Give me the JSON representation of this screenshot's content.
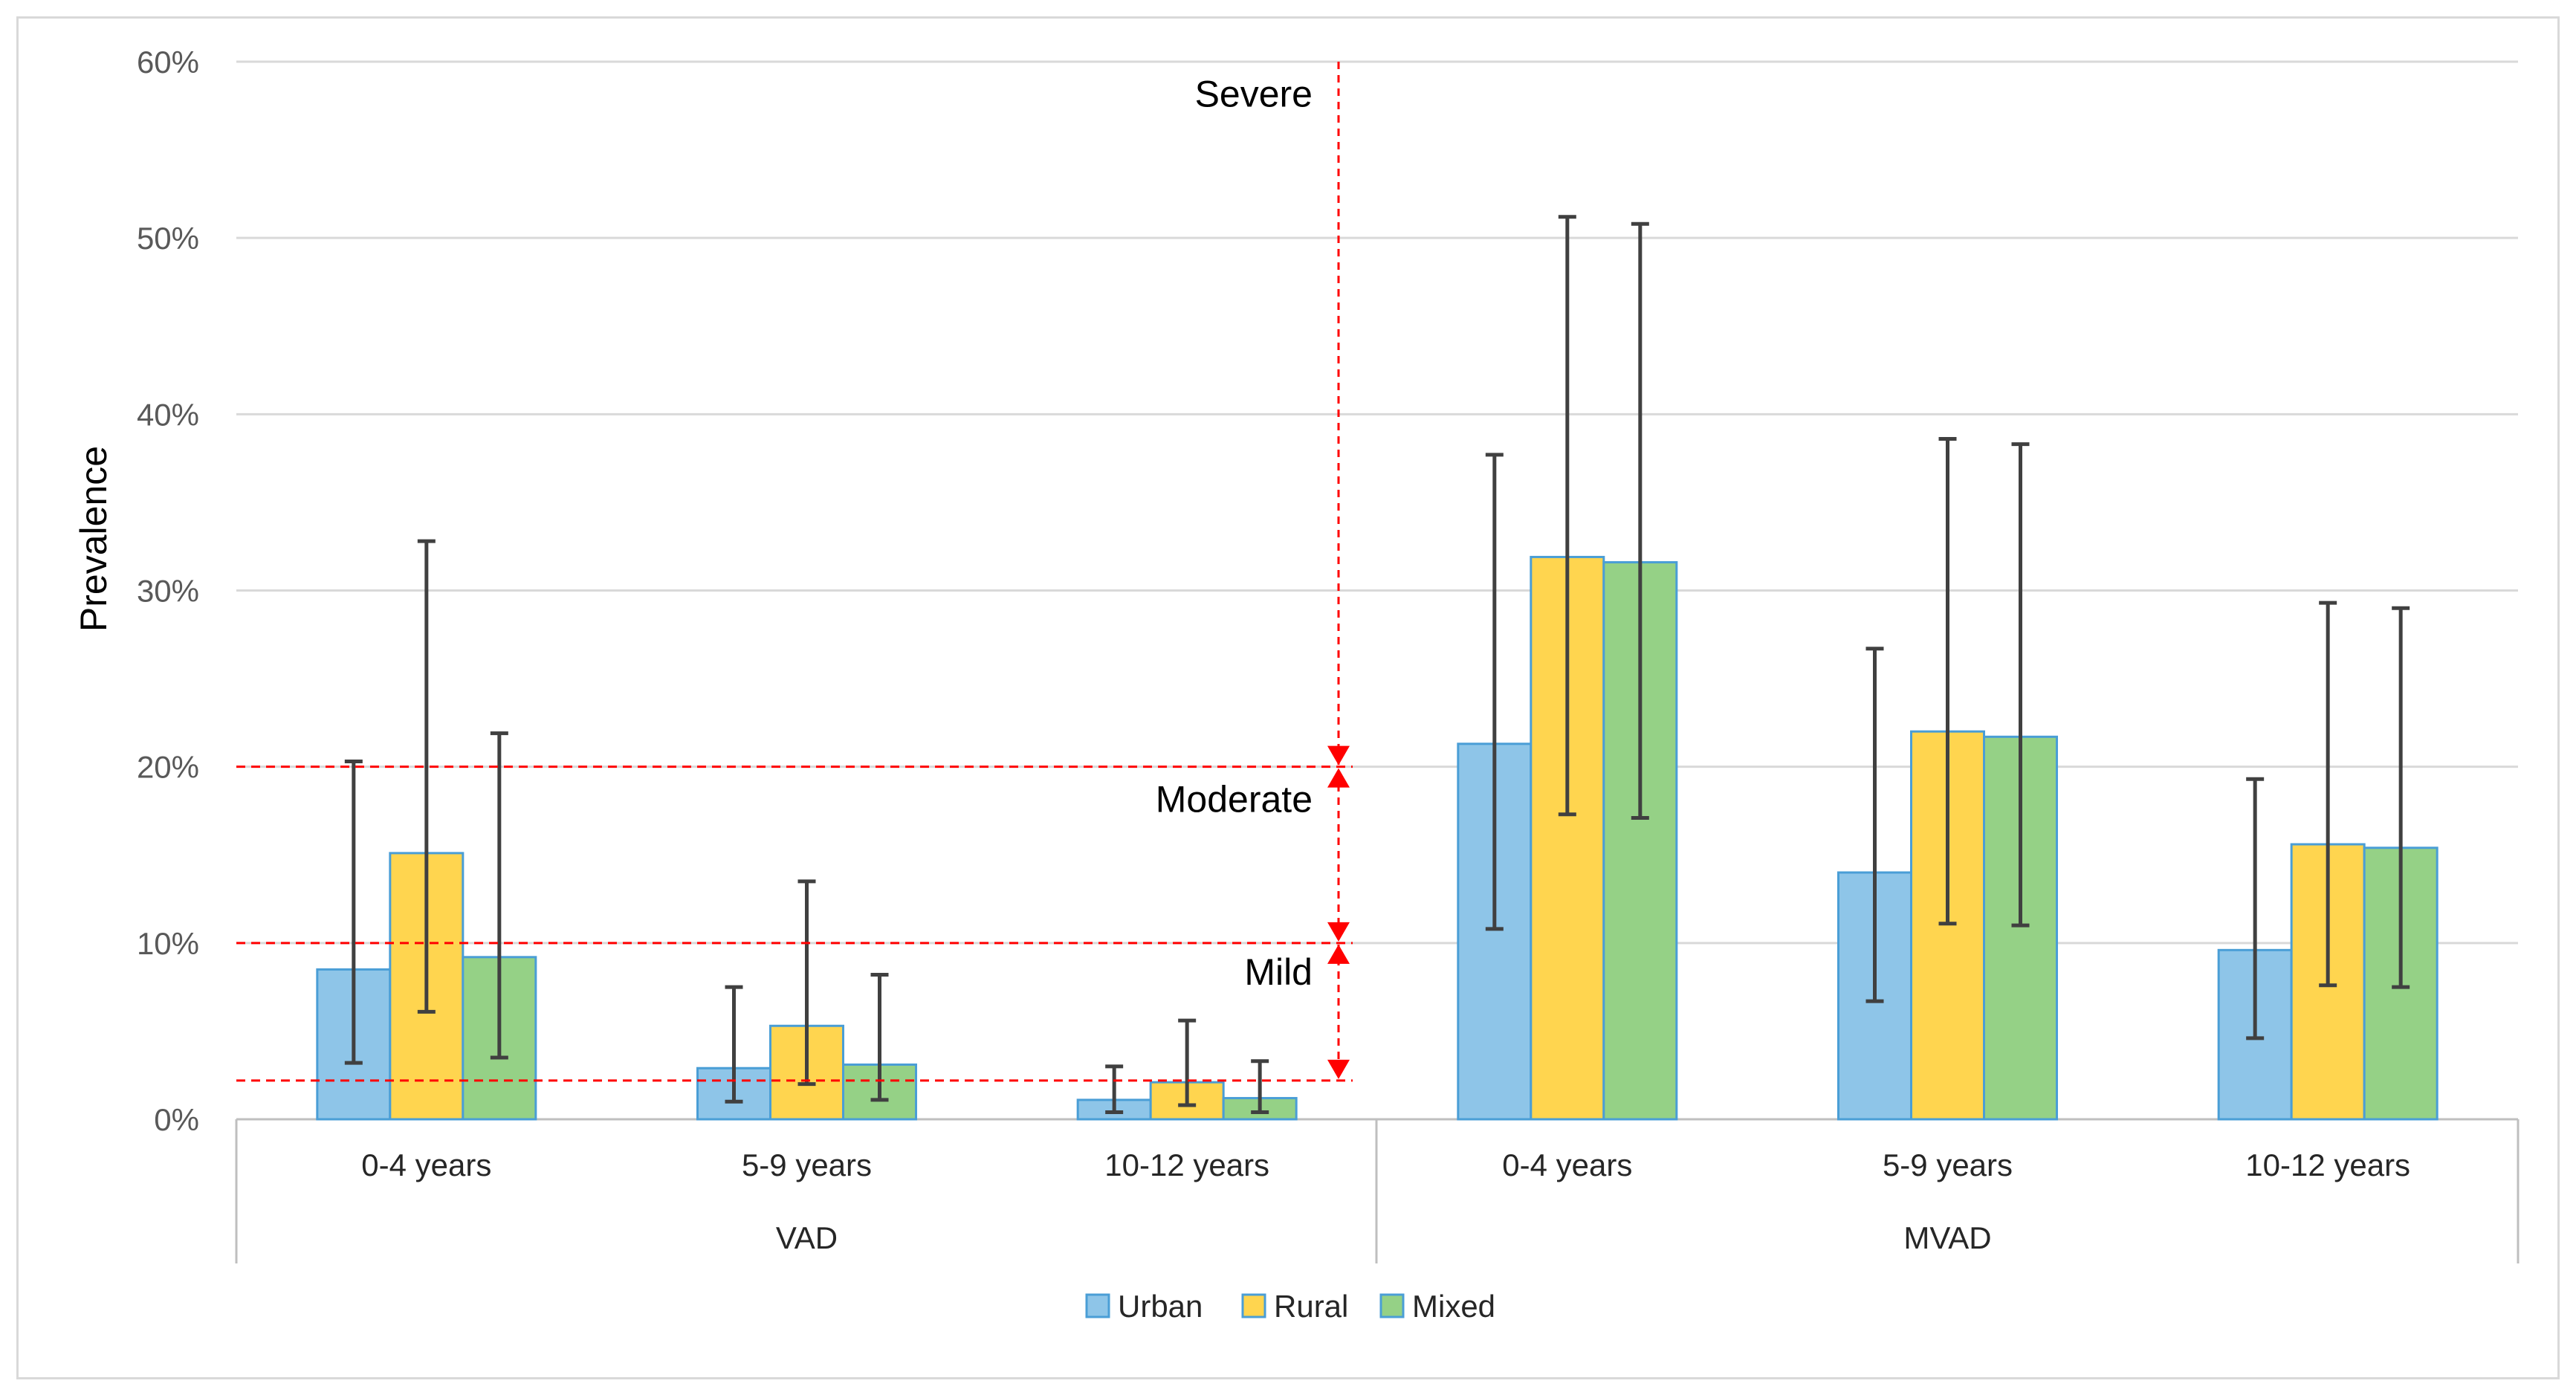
{
  "chart_data": {
    "type": "bar",
    "ylabel": "Prevalence",
    "ylim": [
      0,
      60
    ],
    "yticks": [
      "0%",
      "10%",
      "20%",
      "30%",
      "40%",
      "50%",
      "60%"
    ],
    "grid": true,
    "groups": [
      {
        "label": "VAD",
        "categories": [
          "0-4 years",
          "5-9 years",
          "10-12 years"
        ]
      },
      {
        "label": "MVAD",
        "categories": [
          "0-4 years",
          "5-9 years",
          "10-12 years"
        ]
      }
    ],
    "series": [
      {
        "name": "Urban",
        "color": "#8ec5e8",
        "stroke": "#4a9ed6",
        "values": [
          8.5,
          2.9,
          1.1,
          21.3,
          14.0,
          9.6
        ],
        "err_low": [
          3.2,
          1.0,
          0.4,
          10.8,
          6.7,
          4.6
        ],
        "err_high": [
          20.3,
          7.5,
          3.0,
          37.7,
          26.7,
          19.3
        ]
      },
      {
        "name": "Rural",
        "color": "#ffd54f",
        "stroke": "#4a9ed6",
        "values": [
          15.1,
          5.3,
          2.1,
          31.9,
          22.0,
          15.6
        ],
        "err_low": [
          6.1,
          2.0,
          0.8,
          17.3,
          11.1,
          7.6
        ],
        "err_high": [
          32.8,
          13.5,
          5.6,
          51.2,
          38.6,
          29.3
        ]
      },
      {
        "name": "Mixed",
        "color": "#95d186",
        "stroke": "#4a9ed6",
        "values": [
          9.2,
          3.1,
          1.2,
          31.6,
          21.7,
          15.4
        ],
        "err_low": [
          3.5,
          1.1,
          0.4,
          17.1,
          11.0,
          7.5
        ],
        "err_high": [
          21.9,
          8.2,
          3.3,
          50.8,
          38.3,
          29.0
        ]
      }
    ],
    "thresholds": [
      {
        "label": "Severe",
        "value": 20
      },
      {
        "label": "Moderate",
        "value": 10
      },
      {
        "label": "Mild",
        "value": 2.2
      }
    ],
    "threshold_color": "#ff0000",
    "legend_position": "bottom"
  }
}
